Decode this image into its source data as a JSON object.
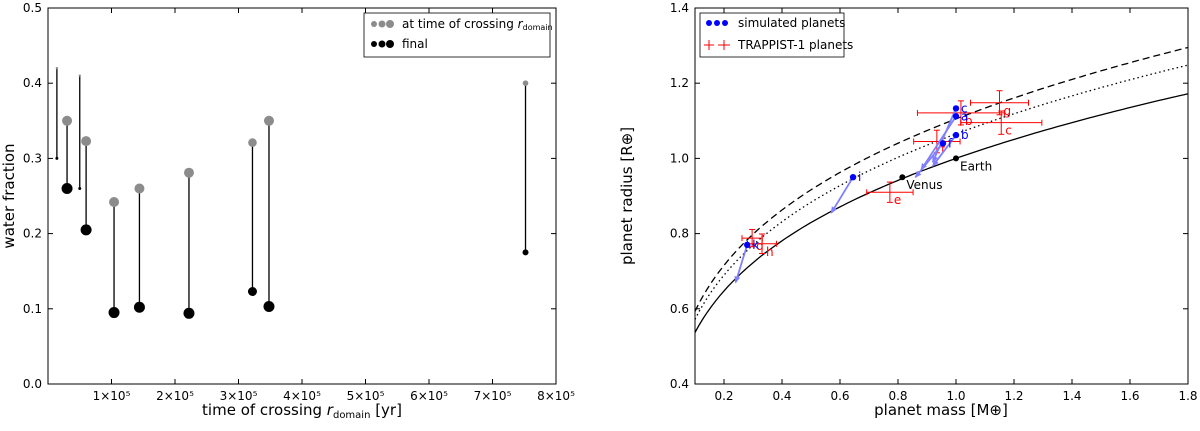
{
  "chart_data": [
    {
      "type": "scatter",
      "xlabel": "time of crossing r_domain [yr]",
      "ylabel": "water fraction",
      "xlim": [
        0,
        800000
      ],
      "ylim": [
        0,
        0.5
      ],
      "xticks": [
        100000,
        200000,
        300000,
        400000,
        500000,
        600000,
        700000,
        800000
      ],
      "xtick_labels": [
        "1×10⁵",
        "2×10⁵",
        "3×10⁵",
        "4×10⁵",
        "5×10⁵",
        "6×10⁵",
        "7×10⁵",
        "8×10⁵"
      ],
      "yticks": [
        0.0,
        0.1,
        0.2,
        0.3,
        0.4,
        0.5
      ],
      "ytick_labels": [
        "0.0",
        "0.1",
        "0.2",
        "0.3",
        "0.4",
        "0.5"
      ],
      "legend": [
        "at time of crossing r_domain",
        "final"
      ],
      "legend_position": "top-right",
      "colors": {
        "crossing": "#8c8c8c",
        "final": "#000000"
      },
      "points": [
        {
          "t": 14000,
          "crossing": 0.42,
          "final": 0.3,
          "size": "tiny"
        },
        {
          "t": 30000,
          "crossing": 0.35,
          "final": 0.26,
          "size": "large"
        },
        {
          "t": 50000,
          "crossing": 0.41,
          "final": 0.26,
          "size": "tiny"
        },
        {
          "t": 60000,
          "crossing": 0.323,
          "final": 0.205,
          "size": "large"
        },
        {
          "t": 104000,
          "crossing": 0.242,
          "final": 0.095,
          "size": "large"
        },
        {
          "t": 144000,
          "crossing": 0.26,
          "final": 0.102,
          "size": "large"
        },
        {
          "t": 222000,
          "crossing": 0.281,
          "final": 0.094,
          "size": "large"
        },
        {
          "t": 322000,
          "crossing": 0.321,
          "final": 0.123,
          "size": "medium"
        },
        {
          "t": 348000,
          "crossing": 0.35,
          "final": 0.103,
          "size": "large"
        },
        {
          "t": 752000,
          "crossing": 0.4,
          "final": 0.175,
          "size": "small"
        }
      ]
    },
    {
      "type": "scatter",
      "xlabel": "planet mass [M⊕]",
      "ylabel": "planet radius [R⊕]",
      "xlim": [
        0.1,
        1.8
      ],
      "ylim": [
        0.4,
        1.4
      ],
      "xticks": [
        0.2,
        0.4,
        0.6,
        0.8,
        1.0,
        1.2,
        1.4,
        1.6,
        1.8
      ],
      "xtick_labels": [
        "0.2",
        "0.4",
        "0.6",
        "0.8",
        "1.0",
        "1.2",
        "1.4",
        "1.6",
        "1.8"
      ],
      "yticks": [
        0.4,
        0.6,
        0.8,
        1.0,
        1.2,
        1.4
      ],
      "ytick_labels": [
        "0.4",
        "0.6",
        "0.8",
        "1.0",
        "1.2",
        "1.4"
      ],
      "legend": [
        "simulated planets",
        "TRAPPIST-1 planets"
      ],
      "legend_position": "top-left",
      "colors": {
        "simulated": "#0000ff",
        "arrow": "#7f7fff",
        "trappist": "#ff0000",
        "curve": "#000000"
      },
      "curves": [
        {
          "name": "rocky",
          "style": "solid",
          "coeff": 1.0,
          "exp": 0.27
        },
        {
          "name": "dotted",
          "style": "dotted",
          "coeff": 1.065,
          "exp": 0.27
        },
        {
          "name": "dashed",
          "style": "dashed",
          "coeff": 1.105,
          "exp": 0.27
        }
      ],
      "reference_points": [
        {
          "label": "Earth",
          "m": 1.0,
          "r": 1.0
        },
        {
          "label": "Venus",
          "m": 0.815,
          "r": 0.95
        }
      ],
      "simulated": [
        {
          "label": "c",
          "m": 1.0,
          "r": 1.133,
          "to_m": 0.92,
          "to_r": 0.99
        },
        {
          "label": "a",
          "m": 1.0,
          "r": 1.112,
          "to_m": 0.88,
          "to_r": 0.97
        },
        {
          "label": "b",
          "m": 1.0,
          "r": 1.062,
          "to_m": 0.92,
          "to_r": 0.98
        },
        {
          "label": "f",
          "m": 0.955,
          "r": 1.04,
          "to_m": 0.86,
          "to_r": 0.95
        },
        {
          "label": "i",
          "m": 0.645,
          "r": 0.95,
          "to_m": 0.57,
          "to_r": 0.855
        },
        {
          "label": "k",
          "m": 0.28,
          "r": 0.77,
          "to_m": 0.24,
          "to_r": 0.67
        }
      ],
      "trappist": [
        {
          "label": "g",
          "m": 1.15,
          "r": 1.148,
          "m_err": 0.1,
          "r_err": 0.032
        },
        {
          "label": "b",
          "m": 1.017,
          "r": 1.121,
          "m_err": 0.15,
          "r_err": 0.032
        },
        {
          "label": "c",
          "m": 1.156,
          "r": 1.095,
          "m_err": 0.14,
          "r_err": 0.031
        },
        {
          "label": "f",
          "m": 0.934,
          "r": 1.045,
          "m_err": 0.08,
          "r_err": 0.03
        },
        {
          "label": "e",
          "m": 0.772,
          "r": 0.91,
          "m_err": 0.08,
          "r_err": 0.027
        },
        {
          "label": "d",
          "m": 0.297,
          "r": 0.788,
          "m_err": 0.035,
          "r_err": 0.023
        },
        {
          "label": "h",
          "m": 0.331,
          "r": 0.773,
          "m_err": 0.05,
          "r_err": 0.026
        }
      ]
    }
  ]
}
